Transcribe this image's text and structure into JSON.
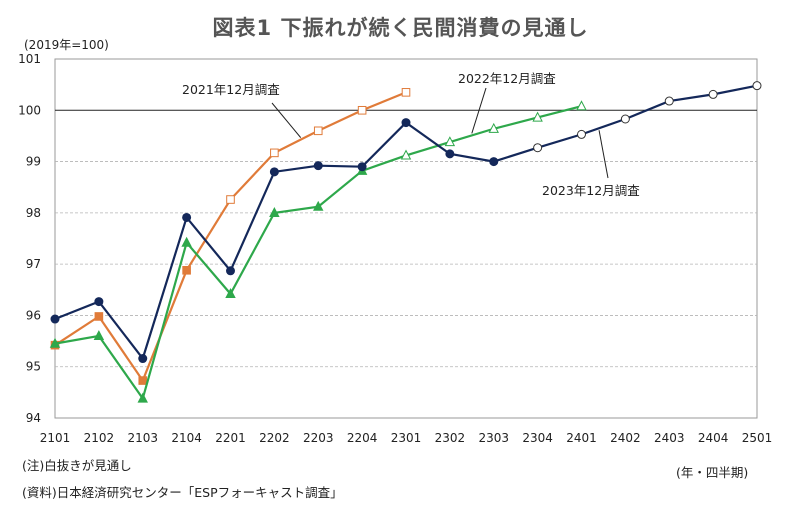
{
  "title": "図表1 下振れが続く民間消費の見通し",
  "unit_label": "(2019年=100)",
  "x_unit_label": "(年・四半期)",
  "notes": [
    "(注)白抜きが見通し",
    "(資料)日本経済研究センター「ESPフォーキャスト調査」"
  ],
  "chart_data": {
    "type": "line",
    "x": [
      "2101",
      "2102",
      "2103",
      "2104",
      "2201",
      "2202",
      "2203",
      "2204",
      "2301",
      "2302",
      "2303",
      "2304",
      "2401",
      "2402",
      "2403",
      "2404",
      "2501"
    ],
    "ylim": [
      94,
      101
    ],
    "yticks": [
      94,
      95,
      96,
      97,
      98,
      99,
      100,
      101
    ],
    "grid": true,
    "reference_line": 100,
    "series": [
      {
        "name": "2021年12月調査",
        "color": "#E07B39",
        "marker": "square",
        "values": [
          95.42,
          95.98,
          94.73,
          96.88,
          98.26,
          99.17,
          99.6,
          100.0,
          100.35,
          null,
          null,
          null,
          null,
          null,
          null,
          null,
          null
        ],
        "forecast_from_index": 4
      },
      {
        "name": "2022年12月調査",
        "color": "#2EA84B",
        "marker": "triangle",
        "values": [
          95.45,
          95.6,
          94.38,
          97.42,
          96.42,
          98.0,
          98.12,
          98.82,
          99.12,
          99.38,
          99.64,
          99.86,
          100.08,
          null,
          null,
          null,
          null
        ],
        "forecast_from_index": 8
      },
      {
        "name": "2023年12月調査",
        "color": "#14285A",
        "marker": "circle",
        "values": [
          95.93,
          96.27,
          95.16,
          97.91,
          96.87,
          98.8,
          98.92,
          98.9,
          99.76,
          99.15,
          99.0,
          99.27,
          99.53,
          99.83,
          100.18,
          100.31,
          100.48
        ],
        "forecast_from_index": 11
      }
    ]
  }
}
